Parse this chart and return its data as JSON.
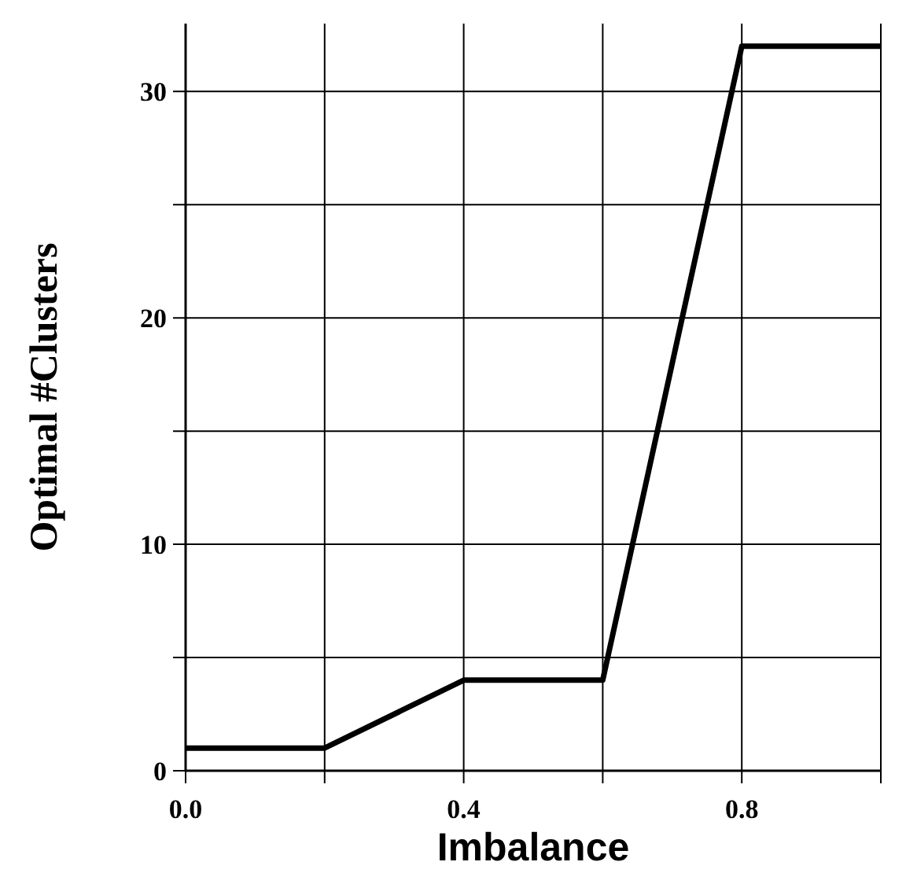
{
  "chart_data": {
    "type": "line",
    "xlabel": "Imbalance",
    "ylabel": "Optimal #Clusters",
    "x": [
      0,
      0.2,
      0.4,
      0.6,
      0.8,
      1.0
    ],
    "series": [
      {
        "color": "#000000",
        "values": [
          1,
          1,
          4,
          4,
          32,
          32
        ]
      }
    ],
    "xlim": [
      0,
      1.0
    ],
    "ylim": [
      0,
      33
    ],
    "xticks": [
      {
        "value": 0,
        "label": "0.0"
      },
      {
        "value": 0.2,
        "label": null
      },
      {
        "value": 0.4,
        "label": "0.4"
      },
      {
        "value": 0.6,
        "label": null
      },
      {
        "value": 0.8,
        "label": "0.8"
      },
      {
        "value": 1.0,
        "label": null
      }
    ],
    "yticks": [
      0,
      {
        "value": 5,
        "label": null
      },
      10,
      {
        "value": 15,
        "label": null
      },
      20,
      {
        "value": 25,
        "label": null
      },
      30
    ],
    "grid": true,
    "marker": "none",
    "line_style": "solid"
  }
}
